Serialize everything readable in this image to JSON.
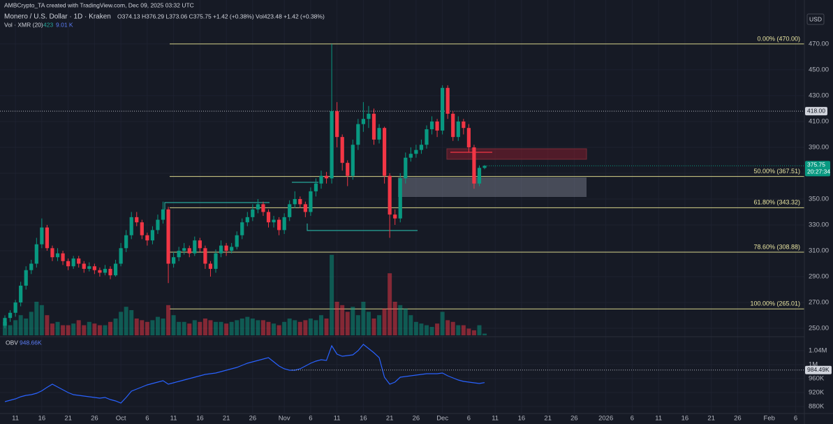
{
  "header": {
    "credit": "AMBCrypto_TA created with TradingView.com, Dec 09, 2025 03:32 UTC",
    "currency": "USD"
  },
  "chart_data": {
    "type": "candlestick",
    "title": "Monero / U.S. Dollar · 1D · Kraken",
    "ohlc_text": "O374.13 H376.29 L373.06 C375.75 +1.42 (+0.38%) Vol423.48 +1.42 (+0.38%)",
    "up_color": "#089981",
    "down_color": "#f23645",
    "grid": true,
    "x": [
      0,
      1,
      2,
      3,
      4,
      5,
      6,
      7,
      8,
      9,
      10,
      11,
      12,
      13,
      14,
      15,
      16,
      17,
      18,
      19,
      20,
      21,
      22,
      23,
      24,
      25,
      26,
      27,
      28,
      29,
      30,
      31,
      32,
      33,
      34,
      35,
      36,
      37,
      38,
      39,
      40,
      41,
      42,
      43,
      44,
      45,
      46,
      47,
      48,
      49,
      50,
      51,
      52,
      53,
      54,
      55,
      56,
      57,
      58,
      59,
      60,
      61,
      62,
      63,
      64,
      65,
      66,
      67,
      68,
      69,
      70,
      71,
      72,
      73,
      74,
      75,
      76,
      77,
      78,
      79,
      80,
      81,
      82,
      83,
      84,
      85,
      86,
      87,
      88,
      89,
      90,
      91
    ],
    "open": [
      252,
      258,
      262,
      270,
      283,
      295,
      300,
      315,
      328,
      312,
      305,
      308,
      302,
      298,
      304,
      300,
      296,
      298,
      295,
      293,
      296,
      291,
      300,
      312,
      322,
      336,
      332,
      322,
      318,
      326,
      334,
      342,
      300,
      305,
      310,
      312,
      308,
      318,
      312,
      300,
      296,
      308,
      314,
      310,
      313,
      322,
      332,
      336,
      342,
      346,
      340,
      332,
      334,
      326,
      336,
      346,
      350,
      346,
      340,
      356,
      362,
      368,
      366,
      418,
      398,
      378,
      368,
      392,
      408,
      412,
      416,
      396,
      405,
      368,
      338,
      335,
      366,
      382,
      385,
      388,
      392,
      404,
      410,
      403,
      436,
      416,
      398,
      410,
      405,
      390,
      362,
      374.13
    ],
    "high": [
      260,
      264,
      272,
      286,
      298,
      303,
      320,
      335,
      330,
      314,
      312,
      310,
      304,
      306,
      306,
      302,
      301,
      300,
      297,
      299,
      298,
      303,
      316,
      326,
      340,
      340,
      334,
      324,
      329,
      338,
      348,
      344,
      309,
      313,
      316,
      314,
      321,
      320,
      314,
      302,
      311,
      318,
      316,
      316,
      325,
      335,
      340,
      346,
      350,
      348,
      342,
      337,
      336,
      339,
      349,
      356,
      352,
      348,
      359,
      366,
      372,
      371,
      470,
      425,
      400,
      380,
      396,
      412,
      425,
      422,
      420,
      408,
      406,
      370,
      342,
      370,
      386,
      390,
      392,
      396,
      407,
      414,
      412,
      438,
      438,
      418,
      414,
      412,
      408,
      392,
      376,
      376.29
    ],
    "low": [
      250,
      255,
      259,
      267,
      280,
      292,
      297,
      312,
      310,
      302,
      302,
      299,
      295,
      296,
      297,
      293,
      294,
      292,
      290,
      291,
      288,
      290,
      298,
      309,
      319,
      329,
      319,
      314,
      315,
      323,
      331,
      285,
      297,
      302,
      307,
      305,
      306,
      309,
      296,
      290,
      293,
      305,
      306,
      308,
      311,
      319,
      329,
      333,
      339,
      337,
      328,
      328,
      322,
      323,
      333,
      343,
      343,
      336,
      337,
      352,
      358,
      362,
      362,
      390,
      372,
      360,
      365,
      388,
      402,
      405,
      392,
      393,
      362,
      320,
      330,
      332,
      362,
      379,
      382,
      385,
      389,
      400,
      398,
      400,
      412,
      395,
      395,
      400,
      386,
      358,
      360,
      373.06
    ],
    "close": [
      258,
      262,
      270,
      283,
      295,
      300,
      315,
      328,
      312,
      305,
      308,
      302,
      298,
      304,
      300,
      296,
      298,
      295,
      293,
      296,
      291,
      300,
      312,
      322,
      336,
      332,
      322,
      318,
      326,
      334,
      342,
      300,
      305,
      310,
      312,
      308,
      318,
      312,
      300,
      296,
      308,
      314,
      310,
      313,
      322,
      332,
      336,
      342,
      346,
      340,
      332,
      334,
      326,
      336,
      346,
      350,
      346,
      340,
      356,
      362,
      368,
      366,
      418,
      398,
      378,
      368,
      392,
      408,
      412,
      416,
      396,
      405,
      368,
      338,
      335,
      366,
      382,
      385,
      388,
      392,
      404,
      410,
      403,
      436,
      416,
      398,
      410,
      405,
      390,
      362,
      374.13,
      375.75
    ],
    "xlim": [
      -0.93,
      151.66
    ],
    "xticks": [
      {
        "value": 2,
        "label": "11"
      },
      {
        "value": 7,
        "label": "16"
      },
      {
        "value": 12,
        "label": "21"
      },
      {
        "value": 17,
        "label": "26"
      },
      {
        "value": 22,
        "label": "Oct"
      },
      {
        "value": 27,
        "label": "6"
      },
      {
        "value": 32,
        "label": "11"
      },
      {
        "value": 37,
        "label": "16"
      },
      {
        "value": 42,
        "label": "21"
      },
      {
        "value": 47,
        "label": "26"
      },
      {
        "value": 53,
        "label": "Nov"
      },
      {
        "value": 58,
        "label": "6"
      },
      {
        "value": 63,
        "label": "11"
      },
      {
        "value": 68,
        "label": "16"
      },
      {
        "value": 73,
        "label": "21"
      },
      {
        "value": 78,
        "label": "26"
      },
      {
        "value": 83,
        "label": "Dec"
      },
      {
        "value": 88,
        "label": "6"
      },
      {
        "value": 93,
        "label": "11"
      },
      {
        "value": 98,
        "label": "16"
      },
      {
        "value": 103,
        "label": "21"
      },
      {
        "value": 108,
        "label": "26"
      },
      {
        "value": 114,
        "label": "2026"
      },
      {
        "value": 119,
        "label": "6"
      },
      {
        "value": 124,
        "label": "11"
      },
      {
        "value": 129,
        "label": "16"
      },
      {
        "value": 134,
        "label": "21"
      },
      {
        "value": 139,
        "label": "26"
      },
      {
        "value": 145,
        "label": "Feb"
      },
      {
        "value": 150,
        "label": "6"
      }
    ],
    "ylim": [
      244.6,
      504
    ],
    "yticks": [
      {
        "value": 250,
        "label": "250.00"
      },
      {
        "value": 270,
        "label": "270.00"
      },
      {
        "value": 290,
        "label": "290.00"
      },
      {
        "value": 310,
        "label": "310.00"
      },
      {
        "value": 330,
        "label": "330.00"
      },
      {
        "value": 350,
        "label": "350.00"
      },
      {
        "value": 370,
        "label": "370.00"
      },
      {
        "value": 390,
        "label": "390.00"
      },
      {
        "value": 410,
        "label": "410.00"
      },
      {
        "value": 430,
        "label": "430.00"
      },
      {
        "value": 450,
        "label": "450.00"
      },
      {
        "value": 470,
        "label": "470.00"
      }
    ],
    "fib_levels": [
      {
        "value": 470,
        "label": "0.00% (470.00)"
      },
      {
        "value": 367.51,
        "label": "50.00% (367.51)"
      },
      {
        "value": 343.32,
        "label": "61.80% (343.32)"
      },
      {
        "value": 308.88,
        "label": "78.60% (308.88)"
      },
      {
        "value": 265.01,
        "label": "100.00% (265.01)"
      }
    ],
    "marked_level": {
      "value": 418,
      "label": "418.00"
    },
    "last_price": {
      "value": 375.75,
      "label": "375.75",
      "countdown": "20:27:34"
    },
    "volume": {
      "name": "Vol · XMR (20)",
      "last": "423",
      "average": "9.01 K",
      "ylim": [
        0,
        200
      ],
      "values": [
        8,
        6,
        9,
        12,
        10,
        14,
        20,
        18,
        12,
        7,
        8,
        6,
        6,
        7,
        9,
        6,
        8,
        7,
        6,
        6,
        8,
        10,
        14,
        17,
        15,
        10,
        9,
        8,
        9,
        11,
        10,
        18,
        12,
        8,
        8,
        7,
        9,
        8,
        10,
        9,
        8,
        8,
        7,
        8,
        9,
        10,
        11,
        10,
        9,
        9,
        8,
        7,
        6,
        8,
        10,
        9,
        8,
        9,
        10,
        9,
        12,
        10,
        48,
        20,
        18,
        14,
        17,
        12,
        20,
        14,
        10,
        12,
        16,
        37,
        20,
        18,
        16,
        12,
        8,
        7,
        6,
        5,
        7,
        14,
        9,
        8,
        6,
        6,
        4,
        3,
        6,
        1
      ]
    },
    "obv": {
      "name": "OBV",
      "value_label": "948.66K",
      "color": "#2962ff",
      "ylim": [
        860000,
        1074000
      ],
      "yticks": [
        {
          "value": 880000,
          "label": "880K"
        },
        {
          "value": 920000,
          "label": "920K"
        },
        {
          "value": 960000,
          "label": "960K"
        },
        {
          "value": 1000000,
          "label": "1M"
        },
        {
          "value": 1040000,
          "label": "1.04M"
        }
      ],
      "level": {
        "value": 984490,
        "label": "984.49K"
      },
      "values": [
        894000,
        898000,
        902000,
        908000,
        912000,
        914000,
        918000,
        925000,
        935000,
        944000,
        936000,
        928000,
        920000,
        914000,
        912000,
        910000,
        908000,
        906000,
        904000,
        906000,
        900000,
        896000,
        890000,
        906000,
        924000,
        930000,
        936000,
        942000,
        946000,
        950000,
        954000,
        944000,
        948000,
        952000,
        956000,
        960000,
        964000,
        968000,
        972000,
        974000,
        976000,
        980000,
        984000,
        988000,
        992000,
        998000,
        1004000,
        1008000,
        1012000,
        1016000,
        1020000,
        1008000,
        996000,
        988000,
        984000,
        984000,
        988000,
        996000,
        1004000,
        1010000,
        1014000,
        1012000,
        1054000,
        1030000,
        1024000,
        1026000,
        1028000,
        1040000,
        1058000,
        1046000,
        1034000,
        1020000,
        964000,
        944000,
        950000,
        964000,
        966000,
        968000,
        970000,
        972000,
        974000,
        974000,
        974000,
        976000,
        968000,
        962000,
        956000,
        952000,
        950000,
        948000,
        946000,
        948660
      ]
    }
  }
}
